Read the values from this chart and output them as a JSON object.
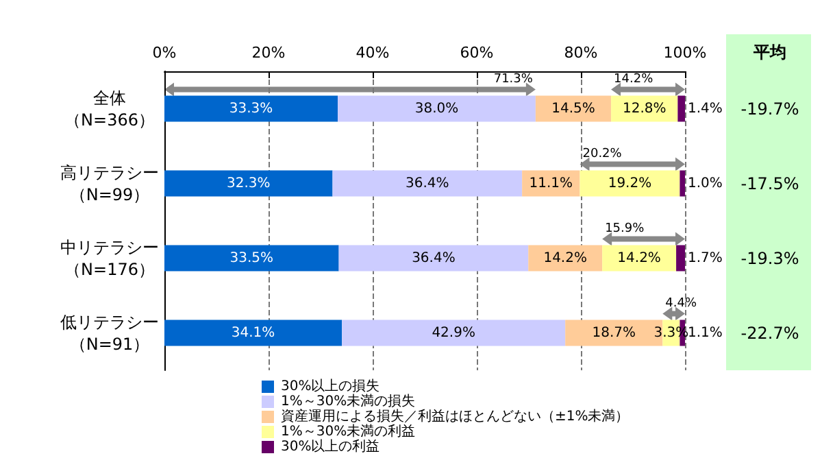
{
  "chart_data": {
    "type": "bar",
    "orientation": "horizontal",
    "stacked": true,
    "categories": [
      "全体（N=366）",
      "高リテラシー（N=99）",
      "中リテラシー（N=176）",
      "低リテラシー（N=91）"
    ],
    "series": [
      {
        "name": "30%以上の損失",
        "color": "#0066cc",
        "values": [
          33.3,
          32.3,
          33.5,
          34.1
        ],
        "value_labels": [
          "33.3%",
          "32.3%",
          "33.5%",
          "34.1%"
        ]
      },
      {
        "name": "1%～30%未満の損失",
        "color": "#ccccff",
        "values": [
          38.0,
          36.4,
          36.4,
          42.9
        ],
        "value_labels": [
          "38.0%",
          "36.4%",
          "36.4%",
          "42.9%"
        ]
      },
      {
        "name": "資産運用による損失／利益はほとんどない（±1%未満）",
        "color": "#ffcc99",
        "values": [
          14.5,
          11.1,
          14.2,
          18.7
        ],
        "value_labels": [
          "14.5%",
          "11.1%",
          "14.2%",
          "18.7%"
        ]
      },
      {
        "name": "1%～30%未満の利益",
        "color": "#ffff99",
        "values": [
          12.8,
          19.2,
          14.2,
          3.3
        ],
        "value_labels": [
          "12.8%",
          "19.2%",
          "14.2%",
          "3.3%"
        ]
      },
      {
        "name": "30%以上の利益",
        "color": "#660066",
        "values": [
          1.4,
          1.0,
          1.7,
          1.1
        ],
        "value_labels": [
          "1.4%",
          "1.0%",
          "1.7%",
          "1.1%"
        ]
      }
    ],
    "xlim": [
      0,
      100
    ],
    "xticks": [
      {
        "value": 0,
        "label": "0%"
      },
      {
        "value": 20,
        "label": "20%"
      },
      {
        "value": 40,
        "label": "40%"
      },
      {
        "value": 60,
        "label": "60%"
      },
      {
        "value": 80,
        "label": "80%"
      },
      {
        "value": 100,
        "label": "100%"
      }
    ],
    "grid": "x",
    "legend": "bottom",
    "annotations": [
      {
        "text": "71.3%",
        "x": 71.3,
        "y": "全体（N=366）"
      },
      {
        "text": "14.2%",
        "x": 85.8,
        "y": "全体（N=366）"
      },
      {
        "text": "20.2%",
        "x": 79.8,
        "y": "高リテラシー（N=99）"
      },
      {
        "text": "15.9%",
        "x": 84.1,
        "y": "中リテラシー（N=176）"
      },
      {
        "text": "4.4%",
        "x": 95.7,
        "y": "低リテラシー（N=91）"
      },
      "平均",
      "-19.7%",
      "-17.5%",
      "-19.3%",
      "-22.7%"
    ]
  }
}
